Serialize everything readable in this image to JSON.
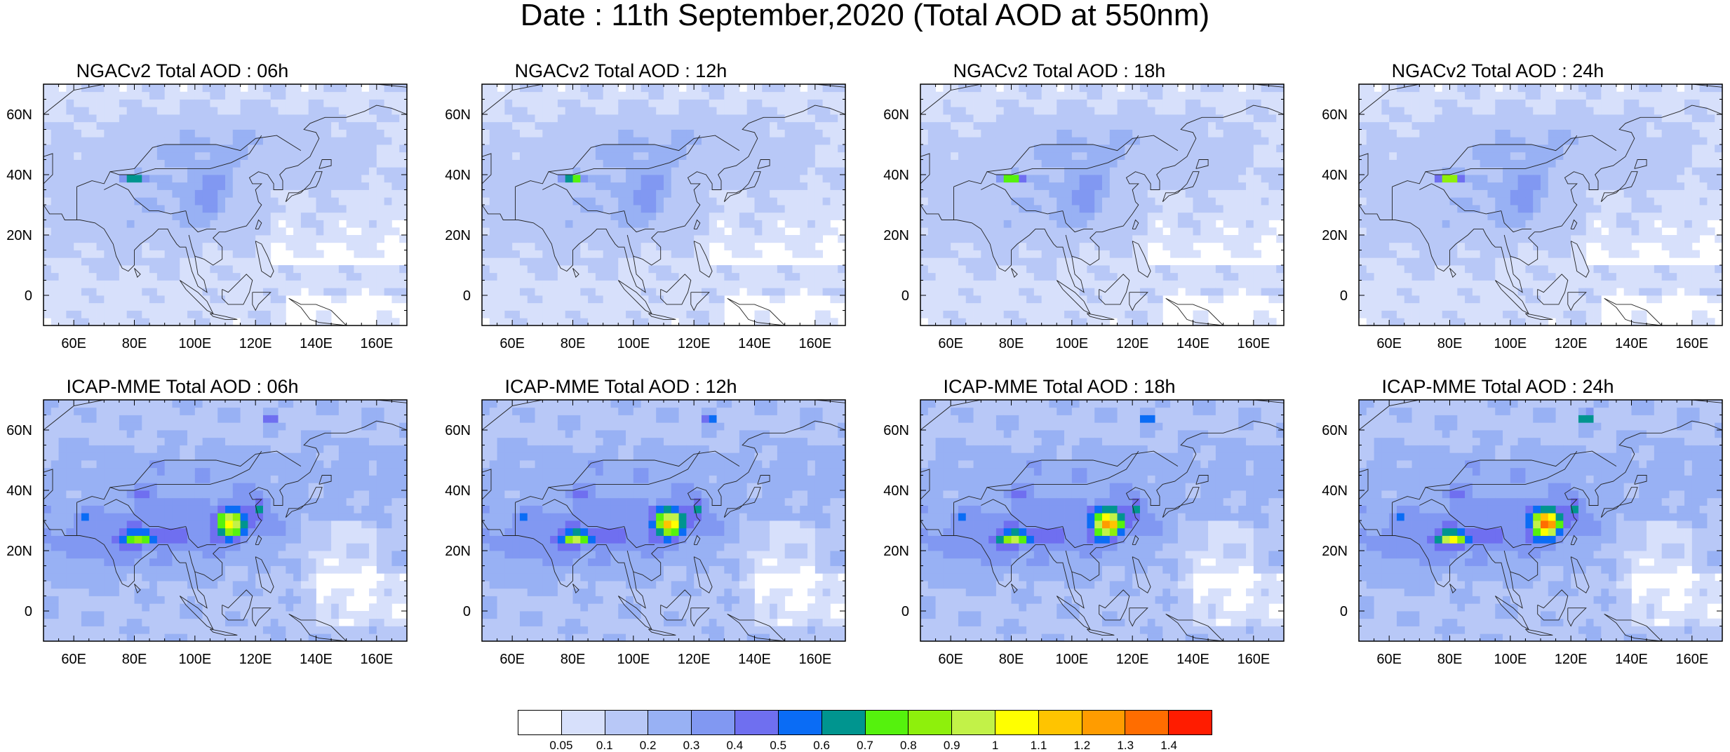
{
  "title": "Date : 11th September,2020 (Total AOD at 550nm)",
  "panels": [
    {
      "title": "NGACv2 Total AOD : 06h",
      "model": "NGACv2",
      "hour": "06h"
    },
    {
      "title": "NGACv2 Total AOD : 12h",
      "model": "NGACv2",
      "hour": "12h"
    },
    {
      "title": "NGACv2 Total AOD : 18h",
      "model": "NGACv2",
      "hour": "18h"
    },
    {
      "title": "NGACv2 Total AOD : 24h",
      "model": "NGACv2",
      "hour": "24h"
    },
    {
      "title": "ICAP-MME Total AOD : 06h",
      "model": "ICAP-MME",
      "hour": "06h"
    },
    {
      "title": "ICAP-MME Total AOD : 12h",
      "model": "ICAP-MME",
      "hour": "12h"
    },
    {
      "title": "ICAP-MME Total AOD : 18h",
      "model": "ICAP-MME",
      "hour": "18h"
    },
    {
      "title": "ICAP-MME Total AOD : 24h",
      "model": "ICAP-MME",
      "hour": "24h"
    }
  ],
  "map": {
    "lon_range": [
      50,
      170
    ],
    "lat_range": [
      -10,
      70
    ],
    "lon_ticks": [
      "60E",
      "80E",
      "100E",
      "120E",
      "140E",
      "160E"
    ],
    "lat_ticks": [
      "0",
      "20N",
      "40N",
      "60N"
    ]
  },
  "colorbar": {
    "labels": [
      "0.05",
      "0.1",
      "0.2",
      "0.3",
      "0.4",
      "0.5",
      "0.6",
      "0.7",
      "0.8",
      "0.9",
      "1",
      "1.1",
      "1.2",
      "1.3",
      "1.4"
    ],
    "colors": [
      "#ffffff",
      "#d7e0fb",
      "#b8c8f7",
      "#98b1f4",
      "#8198f2",
      "#6f6ff0",
      "#0a6cf5",
      "#00958f",
      "#55f20d",
      "#8ef00c",
      "#c2f248",
      "#ffff00",
      "#ffc400",
      "#ff9c00",
      "#ff6d00",
      "#ff1c00"
    ]
  }
}
